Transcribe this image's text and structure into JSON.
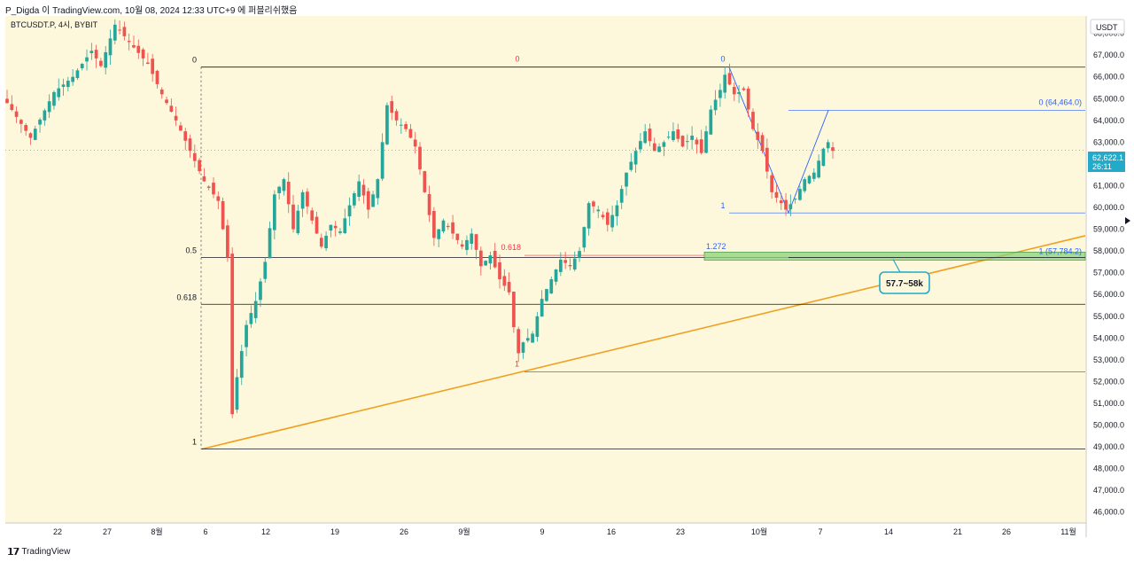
{
  "header": {
    "caption": "P_Digda 이 TradingView.com, 10월 08, 2024 12:33 UTC+9 에 퍼블리쉬했음"
  },
  "footer": {
    "brand": "TradingView"
  },
  "chart_data": {
    "type": "candlestick",
    "symbol_label": "BTCUSDT.P, 4시, BYBIT",
    "currency_label": "USDT",
    "ylim": [
      45500,
      68800
    ],
    "y_ticks": [
      46000,
      47000,
      48000,
      49000,
      50000,
      51000,
      52000,
      53000,
      54000,
      55000,
      56000,
      57000,
      58000,
      59000,
      60000,
      61000,
      62000,
      63000,
      64000,
      65000,
      66000,
      67000,
      68000
    ],
    "x_ticks": [
      "22",
      "27",
      "8월",
      "6",
      "12",
      "19",
      "26",
      "9월",
      "9",
      "16",
      "23",
      "10월",
      "7",
      "14",
      "21",
      "26",
      "11월"
    ],
    "last_price": "62,622.1",
    "countdown": "26:11",
    "colors": {
      "up": "#26a69a",
      "down": "#ef5350",
      "background": "#fdf8dc",
      "fib_black": "#131722",
      "fib_red": "#f23645",
      "fib_blue": "#2962ff",
      "trend": "#f0a020",
      "zone": "#8bd37a"
    },
    "price_path": [
      [
        0,
        64800
      ],
      [
        5,
        63200
      ],
      [
        10,
        65300
      ],
      [
        14,
        66000
      ],
      [
        18,
        67200
      ],
      [
        20,
        66500
      ],
      [
        23,
        68400
      ],
      [
        26,
        67600
      ],
      [
        30,
        66600
      ],
      [
        33,
        65200
      ],
      [
        36,
        64000
      ],
      [
        39,
        62600
      ],
      [
        42,
        61200
      ],
      [
        45,
        60300
      ],
      [
        47,
        57700
      ],
      [
        48,
        50500
      ],
      [
        49,
        52200
      ],
      [
        51,
        54600
      ],
      [
        53,
        55700
      ],
      [
        55,
        57500
      ],
      [
        57,
        60600
      ],
      [
        59,
        61300
      ],
      [
        61,
        59000
      ],
      [
        63,
        60700
      ],
      [
        65,
        59400
      ],
      [
        67,
        58200
      ],
      [
        69,
        59200
      ],
      [
        71,
        58900
      ],
      [
        73,
        60100
      ],
      [
        75,
        61200
      ],
      [
        77,
        59900
      ],
      [
        79,
        61300
      ],
      [
        81,
        64700
      ],
      [
        83,
        64000
      ],
      [
        85,
        63600
      ],
      [
        87,
        62800
      ],
      [
        89,
        60700
      ],
      [
        91,
        58600
      ],
      [
        93,
        59400
      ],
      [
        95,
        58800
      ],
      [
        97,
        58200
      ],
      [
        99,
        58800
      ],
      [
        101,
        57300
      ],
      [
        103,
        57800
      ],
      [
        105,
        56700
      ],
      [
        107,
        56100
      ],
      [
        108,
        54500
      ],
      [
        109,
        53300
      ],
      [
        110,
        53800
      ],
      [
        112,
        54200
      ],
      [
        114,
        55800
      ],
      [
        116,
        56700
      ],
      [
        118,
        57600
      ],
      [
        120,
        57300
      ],
      [
        122,
        58000
      ],
      [
        124,
        60200
      ],
      [
        126,
        59900
      ],
      [
        128,
        59200
      ],
      [
        130,
        60100
      ],
      [
        132,
        61600
      ],
      [
        134,
        62600
      ],
      [
        136,
        63500
      ],
      [
        138,
        62600
      ],
      [
        140,
        63000
      ],
      [
        142,
        63500
      ],
      [
        144,
        62800
      ],
      [
        146,
        63300
      ],
      [
        148,
        62500
      ],
      [
        150,
        64500
      ],
      [
        152,
        65400
      ],
      [
        153,
        66100
      ],
      [
        155,
        65200
      ],
      [
        157,
        65400
      ],
      [
        159,
        63600
      ],
      [
        161,
        62600
      ],
      [
        163,
        60700
      ],
      [
        165,
        60200
      ],
      [
        166,
        59900
      ],
      [
        168,
        60400
      ],
      [
        170,
        61300
      ],
      [
        172,
        61600
      ],
      [
        174,
        62700
      ],
      [
        175,
        63000
      ],
      [
        176,
        62600
      ]
    ],
    "fib_retracements": [
      {
        "name": "fib-black",
        "levels": [
          {
            "ratio": "0",
            "price": 66450
          },
          {
            "ratio": "0.5",
            "price": 57700
          },
          {
            "ratio": "0.618",
            "price": 55550
          },
          {
            "ratio": "1",
            "price": 48900
          }
        ]
      },
      {
        "name": "fib-red",
        "levels": [
          {
            "ratio": "0",
            "price": 66450
          },
          {
            "ratio": "0.618",
            "price": 57800
          },
          {
            "ratio": "1",
            "price": 52450
          }
        ]
      },
      {
        "name": "fib-blue",
        "levels": [
          {
            "ratio": "0",
            "price": 66450
          },
          {
            "ratio": "1",
            "price": 59750
          },
          {
            "ratio": "1.272",
            "price": 57800
          }
        ]
      }
    ],
    "projection": {
      "label": "0 (64,464.0)",
      "price": 64464,
      "end_label": "1 (57,784.2)",
      "end_price": 57784.2
    },
    "zone": {
      "low": 57700,
      "high": 57950
    },
    "callout": "57.7~58k"
  }
}
